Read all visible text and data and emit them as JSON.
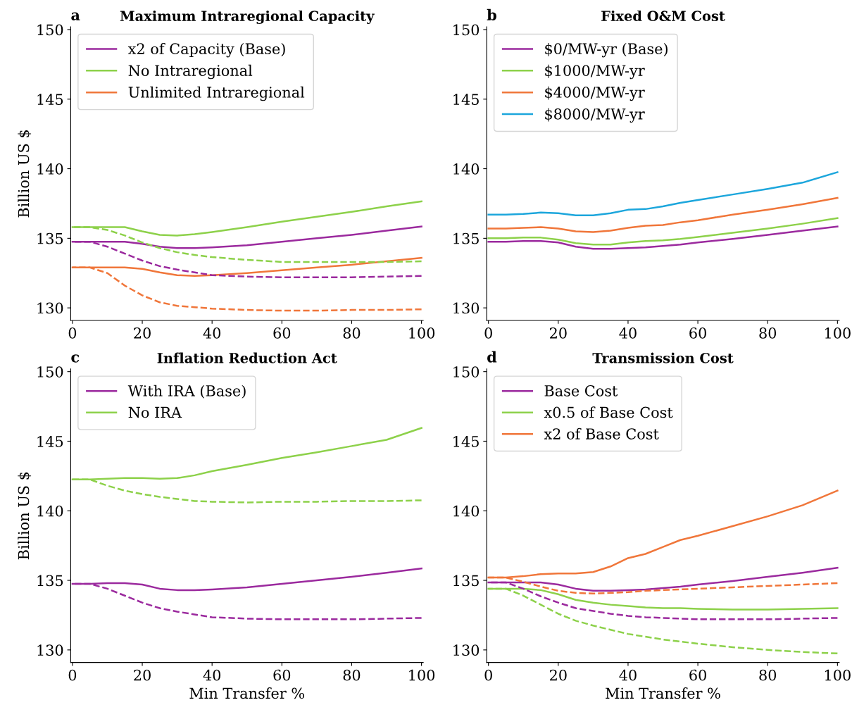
{
  "chart_data": [
    {
      "type": "line",
      "title": "Maximum Intraregional Capacity",
      "annotations": [
        "a"
      ],
      "ylabel": "Billion US $",
      "x": [
        0,
        5,
        10,
        15,
        20,
        25,
        30,
        35,
        40,
        50,
        60,
        70,
        80,
        90,
        100
      ],
      "xlim": [
        -0.5,
        100.5
      ],
      "ylim": [
        129.1,
        150.2
      ],
      "xticks": [
        0,
        20,
        40,
        60,
        80,
        100
      ],
      "yticks": [
        130,
        135,
        140,
        145,
        150
      ],
      "legend": "top left",
      "grid": false,
      "line_style": "solid",
      "series": [
        {
          "name": "x2 of Capacity (Base)",
          "color": "#9b2a9e",
          "values": [
            134.75,
            134.75,
            134.75,
            134.75,
            134.6,
            134.4,
            134.3,
            134.3,
            134.35,
            134.5,
            134.75,
            135.0,
            135.25,
            135.55,
            135.85
          ]
        },
        {
          "name": "No Intraregional",
          "color": "#8dd14a",
          "values": [
            135.8,
            135.8,
            135.8,
            135.8,
            135.5,
            135.25,
            135.2,
            135.3,
            135.45,
            135.8,
            136.2,
            136.55,
            136.9,
            137.3,
            137.65
          ]
        },
        {
          "name": "Unlimited Intraregional",
          "color": "#f0763a",
          "values": [
            132.9,
            132.9,
            132.9,
            132.9,
            132.8,
            132.55,
            132.35,
            132.3,
            132.35,
            132.5,
            132.7,
            132.9,
            133.1,
            133.35,
            133.6
          ]
        },
        {
          "color": "#9b2a9e",
          "line_style": "dashed",
          "values": [
            134.75,
            134.75,
            134.4,
            133.9,
            133.4,
            133.0,
            132.75,
            132.55,
            132.35,
            132.25,
            132.2,
            132.2,
            132.2,
            132.25,
            132.3
          ]
        },
        {
          "color": "#8dd14a",
          "line_style": "dashed",
          "values": [
            135.8,
            135.8,
            135.6,
            135.2,
            134.7,
            134.3,
            134.0,
            133.8,
            133.65,
            133.45,
            133.3,
            133.3,
            133.3,
            133.3,
            133.35
          ]
        },
        {
          "color": "#f0763a",
          "line_style": "dashed",
          "values": [
            132.9,
            132.9,
            132.5,
            131.6,
            130.9,
            130.4,
            130.15,
            130.05,
            129.95,
            129.85,
            129.8,
            129.8,
            129.85,
            129.85,
            129.9
          ]
        }
      ]
    },
    {
      "type": "line",
      "title": "Fixed O&M Cost",
      "annotations": [
        "b"
      ],
      "x": [
        0,
        5,
        10,
        15,
        20,
        25,
        30,
        35,
        40,
        45,
        50,
        55,
        60,
        70,
        80,
        90,
        100
      ],
      "xlim": [
        -0.5,
        100.5
      ],
      "ylim": [
        129.1,
        150.2
      ],
      "xticks": [
        0,
        20,
        40,
        60,
        80,
        100
      ],
      "yticks": [
        130,
        135,
        140,
        145,
        150
      ],
      "legend": "top left",
      "grid": false,
      "line_style": "solid",
      "series": [
        {
          "name": "$0/MW-yr (Base)",
          "color": "#9b2a9e",
          "values": [
            134.75,
            134.75,
            134.8,
            134.8,
            134.7,
            134.4,
            134.25,
            134.25,
            134.3,
            134.35,
            134.45,
            134.55,
            134.7,
            134.95,
            135.25,
            135.55,
            135.85
          ]
        },
        {
          "name": "$1000/MW-yr",
          "color": "#8dd14a",
          "values": [
            135.0,
            135.0,
            135.05,
            135.05,
            134.9,
            134.65,
            134.55,
            134.55,
            134.7,
            134.8,
            134.85,
            134.95,
            135.1,
            135.4,
            135.7,
            136.05,
            136.45
          ]
        },
        {
          "name": "$4000/MW-yr",
          "color": "#f0763a",
          "values": [
            135.7,
            135.7,
            135.75,
            135.8,
            135.7,
            135.5,
            135.45,
            135.55,
            135.75,
            135.9,
            135.95,
            136.15,
            136.3,
            136.7,
            137.05,
            137.45,
            137.9
          ]
        },
        {
          "name": "$8000/MW-yr",
          "color": "#1ca6dc",
          "values": [
            136.7,
            136.7,
            136.75,
            136.85,
            136.8,
            136.65,
            136.65,
            136.8,
            137.05,
            137.1,
            137.3,
            137.55,
            137.75,
            138.15,
            138.55,
            139.0,
            139.75
          ]
        }
      ]
    },
    {
      "type": "line",
      "title": "Inflation Reduction Act",
      "annotations": [
        "c"
      ],
      "ylabel": "Billion US $",
      "xlabel": "Min Transfer %",
      "x": [
        0,
        5,
        10,
        15,
        20,
        25,
        30,
        35,
        40,
        50,
        60,
        70,
        80,
        90,
        100
      ],
      "xlim": [
        -0.5,
        100.5
      ],
      "ylim": [
        129.1,
        150.2
      ],
      "xticks": [
        0,
        20,
        40,
        60,
        80,
        100
      ],
      "yticks": [
        130,
        135,
        140,
        145,
        150
      ],
      "legend": "top left",
      "grid": false,
      "line_style": "solid",
      "series": [
        {
          "name": "With IRA (Base)",
          "color": "#9b2a9e",
          "values": [
            134.75,
            134.75,
            134.8,
            134.8,
            134.7,
            134.4,
            134.3,
            134.3,
            134.35,
            134.5,
            134.75,
            135.0,
            135.25,
            135.55,
            135.85
          ]
        },
        {
          "name": "No IRA",
          "color": "#8dd14a",
          "values": [
            142.25,
            142.25,
            142.3,
            142.35,
            142.35,
            142.3,
            142.35,
            142.55,
            142.85,
            143.3,
            143.8,
            144.2,
            144.65,
            145.1,
            145.95
          ]
        },
        {
          "color": "#9b2a9e",
          "line_style": "dashed",
          "values": [
            134.75,
            134.75,
            134.4,
            133.9,
            133.4,
            133.0,
            132.75,
            132.55,
            132.35,
            132.25,
            132.2,
            132.2,
            132.2,
            132.25,
            132.3
          ]
        },
        {
          "color": "#8dd14a",
          "line_style": "dashed",
          "values": [
            142.25,
            142.25,
            141.8,
            141.45,
            141.2,
            141.0,
            140.85,
            140.7,
            140.65,
            140.6,
            140.65,
            140.65,
            140.7,
            140.7,
            140.75
          ]
        }
      ]
    },
    {
      "type": "line",
      "title": "Transmission Cost",
      "annotations": [
        "d"
      ],
      "xlabel": "Min Transfer %",
      "x": [
        0,
        5,
        10,
        15,
        20,
        25,
        30,
        35,
        40,
        45,
        50,
        55,
        60,
        70,
        80,
        90,
        100
      ],
      "xlim": [
        -0.5,
        100.5
      ],
      "ylim": [
        129.1,
        150.2
      ],
      "xticks": [
        0,
        20,
        40,
        60,
        80,
        100
      ],
      "yticks": [
        130,
        135,
        140,
        145,
        150
      ],
      "legend": "top left",
      "grid": false,
      "line_style": "solid",
      "series": [
        {
          "name": "Base Cost",
          "color": "#9b2a9e",
          "values": [
            134.85,
            134.85,
            134.85,
            134.85,
            134.7,
            134.4,
            134.25,
            134.25,
            134.3,
            134.35,
            134.45,
            134.55,
            134.7,
            134.95,
            135.25,
            135.55,
            135.9
          ]
        },
        {
          "name": "x0.5 of Base Cost",
          "color": "#8dd14a",
          "values": [
            134.4,
            134.4,
            134.4,
            134.3,
            134.0,
            133.6,
            133.4,
            133.25,
            133.15,
            133.05,
            133.0,
            133.0,
            132.95,
            132.9,
            132.9,
            132.95,
            133.0
          ]
        },
        {
          "name": "x2 of Base Cost",
          "color": "#f0763a",
          "values": [
            135.2,
            135.2,
            135.3,
            135.45,
            135.5,
            135.5,
            135.6,
            136.0,
            136.6,
            136.9,
            137.4,
            137.9,
            138.2,
            138.9,
            139.6,
            140.4,
            141.45
          ]
        },
        {
          "color": "#9b2a9e",
          "line_style": "dashed",
          "values": [
            134.85,
            134.85,
            134.4,
            133.85,
            133.4,
            133.0,
            132.8,
            132.6,
            132.45,
            132.35,
            132.3,
            132.25,
            132.2,
            132.2,
            132.2,
            132.25,
            132.3
          ]
        },
        {
          "color": "#8dd14a",
          "line_style": "dashed",
          "values": [
            134.4,
            134.4,
            133.9,
            133.25,
            132.6,
            132.1,
            131.75,
            131.45,
            131.15,
            130.95,
            130.75,
            130.6,
            130.45,
            130.2,
            130.0,
            129.85,
            129.75
          ]
        },
        {
          "color": "#f0763a",
          "line_style": "dashed",
          "values": [
            135.2,
            135.2,
            134.9,
            134.55,
            134.25,
            134.1,
            134.05,
            134.1,
            134.15,
            134.25,
            134.3,
            134.35,
            134.4,
            134.5,
            134.6,
            134.7,
            134.8
          ]
        }
      ]
    }
  ]
}
